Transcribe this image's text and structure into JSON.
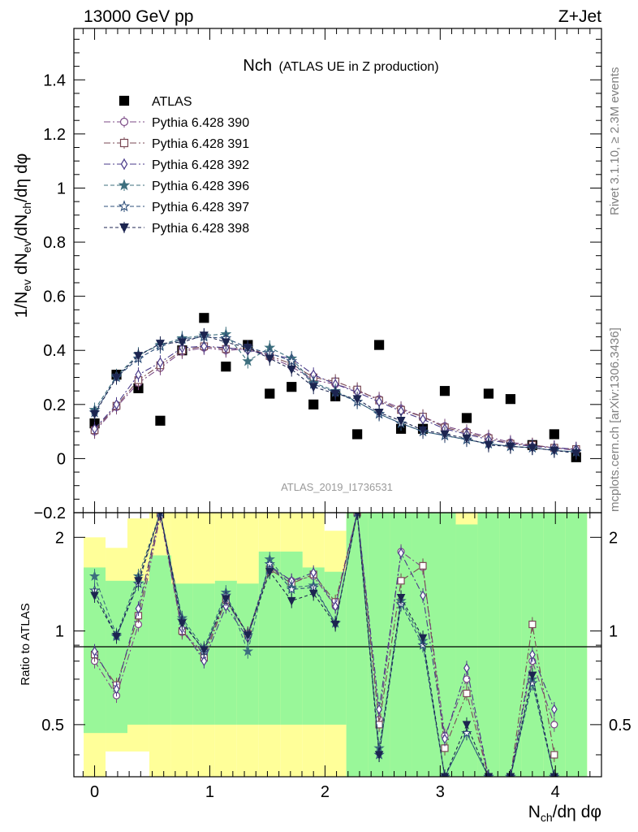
{
  "header": {
    "left_label": "13000 GeV pp",
    "right_label": "Z+Jet",
    "rivet_label": "Rivet 3.1.10, ≥ 2.3M events",
    "mcplots_label": "mcplots.cern.ch [arXiv:1306.3436]",
    "analysis_label": "ATLAS_2019_I1736531"
  },
  "chart_data": [
    {
      "type": "scatter",
      "panel": "main",
      "title_main": "Nch",
      "title_sub": "(ATLAS UE in Z production)",
      "ylabel": "1/N_ev dN_ev/dN_ch/dη dφ",
      "xlabel": "N_ch/dη dφ",
      "xlim": [
        -0.18,
        4.4
      ],
      "ylim": [
        -0.2,
        1.59
      ],
      "xticks": [
        0,
        1,
        2,
        3,
        4
      ],
      "yticks": [
        0,
        0.2,
        0.4,
        0.6,
        0.8,
        1,
        1.2,
        1.4
      ],
      "ytick_labels": [
        "0",
        "0.2",
        "0.4",
        "0.6",
        "0.8",
        "1",
        "1.2",
        "1.4"
      ],
      "legend_position": "top-left",
      "x": [
        0.0,
        0.19,
        0.38,
        0.57,
        0.76,
        0.95,
        1.14,
        1.33,
        1.52,
        1.71,
        1.9,
        2.09,
        2.28,
        2.47,
        2.66,
        2.85,
        3.04,
        3.23,
        3.42,
        3.61,
        3.8,
        3.99,
        4.18
      ],
      "series": [
        {
          "name": "ATLAS",
          "color": "#000000",
          "marker": "square-filled",
          "dash": "none",
          "values": [
            0.13,
            0.31,
            0.26,
            0.14,
            0.4,
            0.52,
            0.34,
            0.42,
            0.24,
            0.265,
            0.2,
            0.23,
            0.09,
            0.42,
            0.11,
            0.11,
            0.25,
            0.15,
            0.24,
            0.22,
            0.05,
            0.09,
            0.005
          ]
        },
        {
          "name": "Pythia 6.428 390",
          "color": "#7b4a86",
          "marker": "circle-open",
          "dash": "8,3,2,3",
          "values": [
            0.1,
            0.19,
            0.28,
            0.335,
            0.395,
            0.41,
            0.4,
            0.405,
            0.375,
            0.34,
            0.29,
            0.275,
            0.25,
            0.22,
            0.185,
            0.155,
            0.12,
            0.1,
            0.08,
            0.06,
            0.05,
            0.04,
            0.03
          ]
        },
        {
          "name": "Pythia 6.428 391",
          "color": "#7a4a55",
          "marker": "square-open",
          "dash": "8,3,2,3",
          "values": [
            0.105,
            0.195,
            0.29,
            0.345,
            0.4,
            0.415,
            0.405,
            0.41,
            0.38,
            0.35,
            0.3,
            0.285,
            0.255,
            0.215,
            0.18,
            0.155,
            0.115,
            0.095,
            0.075,
            0.055,
            0.05,
            0.04,
            0.035
          ]
        },
        {
          "name": "Pythia 6.428 392",
          "color": "#4a3a8a",
          "marker": "diamond-open",
          "dash": "8,3,2,3",
          "values": [
            0.11,
            0.2,
            0.31,
            0.355,
            0.41,
            0.415,
            0.41,
            0.4,
            0.385,
            0.37,
            0.31,
            0.275,
            0.245,
            0.21,
            0.175,
            0.145,
            0.11,
            0.09,
            0.07,
            0.055,
            0.045,
            0.04,
            0.035
          ]
        },
        {
          "name": "Pythia 6.428 396",
          "color": "#3d6f7e",
          "marker": "star-filled",
          "dash": "5,3",
          "values": [
            0.18,
            0.305,
            0.385,
            0.42,
            0.445,
            0.455,
            0.46,
            0.36,
            0.41,
            0.37,
            0.28,
            0.25,
            0.21,
            0.165,
            0.13,
            0.1,
            0.085,
            0.07,
            0.055,
            0.045,
            0.04,
            0.03,
            0.025
          ]
        },
        {
          "name": "Pythia 6.428 397",
          "color": "#2e4f7a",
          "marker": "star-open",
          "dash": "5,3",
          "values": [
            0.17,
            0.3,
            0.37,
            0.415,
            0.44,
            0.45,
            0.445,
            0.41,
            0.39,
            0.36,
            0.275,
            0.245,
            0.21,
            0.165,
            0.13,
            0.1,
            0.085,
            0.07,
            0.055,
            0.045,
            0.04,
            0.03,
            0.025
          ]
        },
        {
          "name": "Pythia 6.428 398",
          "color": "#1c2550",
          "marker": "triangle-down-filled",
          "dash": "4,3",
          "values": [
            0.165,
            0.3,
            0.38,
            0.425,
            0.43,
            0.455,
            0.43,
            0.41,
            0.37,
            0.33,
            0.265,
            0.24,
            0.22,
            0.17,
            0.14,
            0.105,
            0.09,
            0.075,
            0.05,
            0.045,
            0.04,
            0.03,
            0.02
          ]
        }
      ]
    },
    {
      "type": "scatter",
      "panel": "ratio",
      "ylabel": "Ratio to ATLAS",
      "xlabel": "N_ch/dη dφ",
      "ylog": true,
      "xlim": [
        -0.18,
        4.4
      ],
      "ylim": [
        0.34,
        2.4
      ],
      "xticks": [
        0,
        1,
        2,
        3,
        4
      ],
      "xtick_labels": [
        "0",
        "1",
        "2",
        "3",
        "4"
      ],
      "yticks": [
        0.5,
        1,
        2
      ],
      "ytick_labels": [
        "0.5",
        "1",
        "2"
      ],
      "reference_line": 1,
      "band_colors": {
        "inner": "#99f799",
        "outer": "#ffff99"
      },
      "bands": {
        "edges": [
          -0.095,
          0.095,
          0.285,
          0.475,
          0.665,
          0.855,
          1.045,
          1.235,
          1.425,
          1.615,
          1.805,
          1.995,
          2.185,
          2.375,
          2.565,
          2.755,
          2.945,
          3.135,
          3.325,
          3.515,
          3.705,
          3.895,
          4.085,
          4.275
        ],
        "inner_low": [
          0.47,
          0.47,
          0.5,
          0.5,
          0.5,
          0.5,
          0.5,
          0.5,
          0.5,
          0.5,
          0.5,
          0.5,
          0.34,
          0.34,
          0.34,
          0.34,
          0.34,
          0.34,
          0.34,
          0.34,
          0.34,
          0.34,
          0.34
        ],
        "inner_high": [
          1.6,
          1.45,
          1.45,
          1.75,
          1.42,
          1.42,
          1.45,
          1.42,
          1.8,
          1.8,
          1.6,
          1.55,
          2.4,
          2.4,
          2.4,
          2.4,
          2.4,
          2.2,
          2.4,
          2.4,
          2.4,
          2.4,
          2.4
        ],
        "outer_low": [
          0.34,
          0.41,
          0.41,
          0.34,
          0.34,
          0.34,
          0.34,
          0.34,
          0.34,
          0.34,
          0.34,
          0.34,
          0.34,
          0.34,
          0.34,
          0.34,
          0.34,
          0.34,
          0.34,
          0.34,
          0.34,
          0.34,
          0.34
        ],
        "outer_high": [
          2.0,
          1.85,
          2.3,
          2.4,
          2.4,
          2.4,
          2.4,
          2.4,
          2.4,
          2.4,
          2.4,
          2.1,
          2.4,
          2.4,
          2.4,
          2.4,
          2.4,
          2.4,
          2.4,
          2.4,
          2.4,
          2.4,
          2.4
        ]
      },
      "x": [
        0.0,
        0.19,
        0.38,
        0.57,
        0.76,
        0.95,
        1.14,
        1.33,
        1.52,
        1.71,
        1.9,
        2.09,
        2.28,
        2.47,
        2.66,
        2.85,
        3.04,
        3.23,
        3.42,
        3.61,
        3.8,
        3.99
      ],
      "series": [
        {
          "name": "Pythia 6.428 390",
          "color": "#7b4a86",
          "marker": "circle-open",
          "dash": "8,3,2,3",
          "values": [
            0.8,
            0.62,
            1.05,
            2.35,
            0.99,
            0.85,
            1.25,
            0.98,
            1.6,
            1.45,
            1.5,
            1.2,
            2.4,
            0.52,
            1.8,
            1.6,
            0.46,
            0.7,
            0.34,
            0.34,
            0.8,
            0.5
          ]
        },
        {
          "name": "Pythia 6.428 391",
          "color": "#7a4a55",
          "marker": "square-open",
          "dash": "8,3,2,3",
          "values": [
            0.84,
            0.67,
            1.12,
            2.4,
            1.0,
            0.82,
            1.26,
            0.98,
            1.58,
            1.42,
            1.52,
            1.24,
            2.4,
            0.5,
            1.45,
            1.62,
            0.42,
            0.63,
            0.34,
            0.34,
            1.05,
            0.4
          ]
        },
        {
          "name": "Pythia 6.428 392",
          "color": "#4a3a8a",
          "marker": "diamond-open",
          "dash": "8,3,2,3",
          "values": [
            0.86,
            0.65,
            1.18,
            2.4,
            1.02,
            0.8,
            1.2,
            0.95,
            1.62,
            1.45,
            1.54,
            1.2,
            2.4,
            0.56,
            1.78,
            1.3,
            0.45,
            0.76,
            0.34,
            0.34,
            0.84,
            0.56
          ]
        },
        {
          "name": "Pythia 6.428 396",
          "color": "#3d6f7e",
          "marker": "star-filled",
          "dash": "5,3",
          "values": [
            1.5,
            0.97,
            1.5,
            2.4,
            1.1,
            0.88,
            1.33,
            0.86,
            1.7,
            1.38,
            1.4,
            1.06,
            2.4,
            0.42,
            1.25,
            0.93,
            0.34,
            0.47,
            0.34,
            0.34,
            0.7,
            0.34
          ]
        },
        {
          "name": "Pythia 6.428 397",
          "color": "#2e4f7a",
          "marker": "star-open",
          "dash": "5,3",
          "values": [
            1.35,
            0.96,
            1.42,
            2.4,
            1.08,
            0.86,
            1.3,
            0.97,
            1.64,
            1.36,
            1.38,
            1.06,
            2.4,
            0.4,
            1.22,
            0.9,
            0.34,
            0.47,
            0.34,
            0.34,
            0.68,
            0.34
          ]
        },
        {
          "name": "Pythia 6.428 398",
          "color": "#1c2550",
          "marker": "triangle-down-filled",
          "dash": "4,3",
          "values": [
            1.3,
            0.96,
            1.45,
            2.4,
            1.06,
            0.87,
            1.27,
            0.97,
            1.55,
            1.25,
            1.32,
            1.05,
            2.4,
            0.4,
            1.28,
            0.95,
            0.34,
            0.5,
            0.34,
            0.34,
            0.72,
            0.34
          ]
        }
      ]
    }
  ]
}
